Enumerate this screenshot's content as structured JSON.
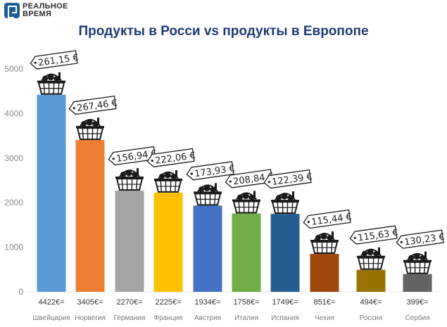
{
  "header": {
    "logo_line1": "РЕАЛЬНОЕ",
    "logo_line2": "ВРЕМЯ",
    "title": "Продукты в Росси vs продукты в Европопе"
  },
  "chart_data": {
    "type": "bar",
    "title": "Продукты в Росси vs продукты в Европопе",
    "xlabel": "",
    "ylabel": "",
    "ylim": [
      0,
      5000
    ],
    "yticks": [
      0,
      1000,
      2000,
      3000,
      4000,
      5000
    ],
    "grid": false,
    "legend": "none",
    "categories": [
      "Швейцария",
      "Норвегия",
      "Германия",
      "Франция",
      "Австрия",
      "Италия",
      "Испания",
      "Чехия",
      "Россия",
      "Сербия"
    ],
    "values": [
      4422,
      3405,
      2270,
      2225,
      1934,
      1758,
      1749,
      851,
      494,
      399
    ],
    "value_labels": [
      "4422€=",
      "3405€=",
      "2270€=",
      "2225€=",
      "1934€=",
      "1758€=",
      "1749€=",
      "851€=",
      "494€=",
      "399€="
    ],
    "basket_prices": [
      "261,15 €",
      "267,46 €",
      "156,94 €",
      "222,06 €",
      "173,93 €",
      "208,84 €",
      "122,39 €",
      "115,44 €",
      "115,63 €",
      "130,23 €"
    ],
    "colors": [
      "#5b9bd5",
      "#ed7d31",
      "#a5a5a5",
      "#ffc000",
      "#4472c4",
      "#70ad47",
      "#255e91",
      "#9e480e",
      "#997300",
      "#636363"
    ],
    "icons": [
      "basket-icon",
      "price-tag-icon"
    ]
  }
}
